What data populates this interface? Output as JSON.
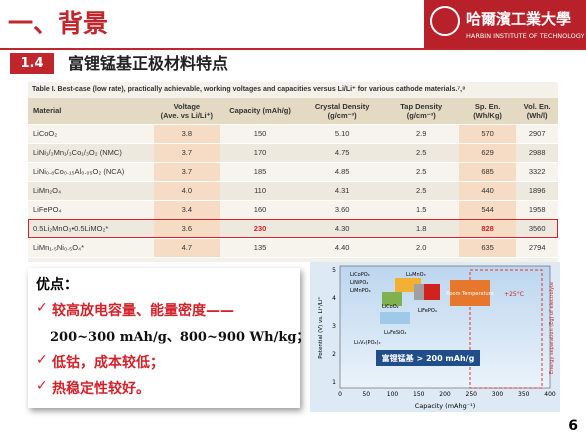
{
  "header": {
    "title": "一、背景",
    "logo_cn": "哈爾濱工業大學",
    "logo_en": "HARBIN INSTITUTE OF TECHNOLOGY"
  },
  "section": {
    "number": "1.4",
    "title": "富锂锰基正极材料特点"
  },
  "table": {
    "caption": "Table I.  Best-case (low rate), practically achievable, working voltages and capacities versus Li/Li⁺ for various cathode materials.⁷,⁸",
    "columns": [
      [
        "Material"
      ],
      [
        "Voltage",
        "(Ave. vs Li/Li⁺)"
      ],
      [
        "Capacity (mAh/g)"
      ],
      [
        "Crystal Density",
        "(g/cm⁻³)"
      ],
      [
        "Tap Density",
        "(g/cm⁻³)"
      ],
      [
        "Sp. En.",
        "(Wh/Kg)"
      ],
      [
        "Vol. En.",
        "(Wh/l)"
      ]
    ],
    "rows": [
      [
        "LiCoO₂",
        "3.8",
        "150",
        "5.10",
        "2.9",
        "570",
        "2907"
      ],
      [
        "LiNi₁/₃Mn₁/₃Co₁/₃O₂ (NMC)",
        "3.7",
        "170",
        "4.75",
        "2.5",
        "629",
        "2988"
      ],
      [
        "LiNi₀.₈Co₀.₁₅Al₀.₀₅O₂ (NCA)",
        "3.7",
        "185",
        "4.85",
        "2.5",
        "685",
        "3322"
      ],
      [
        "LiMn₂O₄",
        "4.0",
        "110",
        "4.31",
        "2.5",
        "440",
        "1896"
      ],
      [
        "LiFePO₄",
        "3.4",
        "160",
        "3.60",
        "1.5",
        "544",
        "1958"
      ],
      [
        "0.5Li₂MnO₃•0.5LiMO₂*",
        "3.6",
        "230",
        "4.30",
        "1.8",
        "828",
        "3560"
      ],
      [
        "LiMn₁.₅Ni₀.₅O₄*",
        "4.7",
        "135",
        "4.40",
        "2.0",
        "635",
        "2794"
      ]
    ]
  },
  "advantages": {
    "heading": "优点：",
    "items": [
      [
        "较高放电容量、能量密度——",
        "200~300 mAh/g、800~900 Wh/kg；"
      ],
      [
        "低钴，成本较低；"
      ],
      [
        "热稳定性较好。"
      ]
    ]
  },
  "figure": {
    "x_label": "Capacity (mAhg⁻¹)",
    "y_label": "Potential (V) vs. Li⁺/Li⁰",
    "x_ticks": [
      "0",
      "50",
      "100",
      "150",
      "200",
      "250",
      "300",
      "350",
      "400"
    ],
    "y_ticks": [
      "1",
      "2",
      "3",
      "4",
      "5"
    ],
    "callout": "富锂锰基 > 200 mAh/g",
    "room": "Room Temperature",
    "temp": "+25°C",
    "side": "Energy separation (Eg) of electrolyte",
    "materials": [
      "LiCoPO₄",
      "LiNiPO₄",
      "LiMnPO₄",
      "Li₂MnO₃",
      "LiCoO₂",
      "LiFePO₄",
      "Li₂FeSiO₄",
      "Li₃V₂(PO₄)₃"
    ]
  },
  "page_number": "6"
}
